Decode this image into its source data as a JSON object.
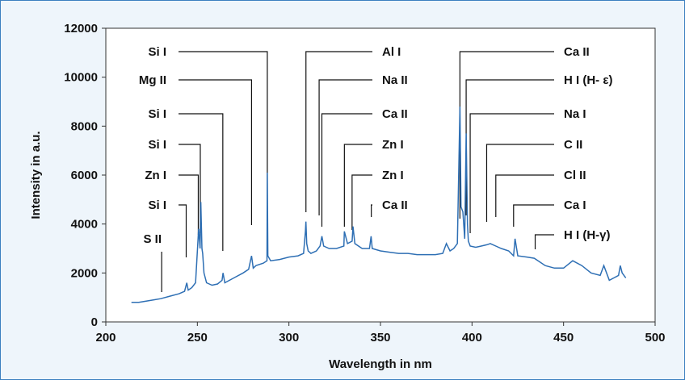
{
  "chart_data": {
    "type": "line",
    "title": "",
    "xlabel": "Wavelength in nm",
    "ylabel": "Intensity in a.u.",
    "xlim": [
      200,
      500
    ],
    "ylim": [
      0,
      12000
    ],
    "x_ticks": [
      200,
      250,
      300,
      350,
      400,
      450,
      500
    ],
    "y_ticks": [
      0,
      2000,
      4000,
      6000,
      8000,
      10000,
      12000
    ],
    "grid": false,
    "legend": "none",
    "line_color": "#2e6fb4",
    "series": [
      {
        "x": [
          214,
          218,
          222,
          226,
          230,
          235,
          240,
          243,
          244.2,
          245,
          247,
          249,
          250.7,
          251.5,
          251.9,
          252.5,
          252.9,
          253.6,
          255,
          258,
          261,
          263.5,
          264,
          265,
          270,
          275,
          278,
          279.6,
          280.5,
          282,
          286,
          288,
          288.2,
          288.5,
          290,
          295,
          300,
          305,
          308,
          309,
          309.3,
          309.7,
          310.5,
          312,
          315,
          317,
          318,
          319,
          322,
          326,
          330,
          330.3,
          332,
          334.5,
          335,
          336,
          340,
          344,
          344.9,
          345.5,
          350,
          355,
          360,
          365,
          370,
          375,
          380,
          384,
          386,
          388,
          390,
          392,
          393.4,
          394,
          395,
          396,
          396.8,
          397.5,
          398,
          399,
          402,
          405,
          408,
          410,
          413,
          416,
          420,
          422.7,
          423.5,
          425,
          430,
          434,
          440,
          445,
          450,
          455,
          460,
          465,
          470,
          472,
          475,
          480,
          481,
          482,
          484
        ],
        "y": [
          800,
          800,
          850,
          900,
          950,
          1050,
          1150,
          1250,
          1600,
          1300,
          1400,
          1600,
          3800,
          3000,
          4900,
          3000,
          2800,
          2000,
          1600,
          1500,
          1550,
          1700,
          2000,
          1600,
          1800,
          2000,
          2150,
          2700,
          2200,
          2300,
          2400,
          2500,
          6100,
          2700,
          2500,
          2550,
          2650,
          2700,
          2800,
          3700,
          4100,
          3200,
          2900,
          2800,
          2900,
          3100,
          3500,
          3100,
          3000,
          3000,
          3100,
          3700,
          3200,
          3300,
          3900,
          3200,
          3000,
          3000,
          3500,
          3000,
          2900,
          2850,
          2800,
          2800,
          2750,
          2750,
          2750,
          2800,
          3200,
          2900,
          3000,
          3200,
          8800,
          4700,
          4500,
          3400,
          7700,
          4000,
          3300,
          3100,
          3050,
          3100,
          3150,
          3200,
          3100,
          3000,
          2900,
          2700,
          3400,
          2700,
          2650,
          2600,
          2300,
          2200,
          2200,
          2500,
          2300,
          2000,
          1900,
          2300,
          1700,
          1900,
          2300,
          2000,
          1800
        ]
      }
    ],
    "annotations": [
      {
        "label": "Si I",
        "x": 288.2,
        "side": "left"
      },
      {
        "label": "Mg II",
        "x": 279.6,
        "side": "left"
      },
      {
        "label": "Si I",
        "x": 263.9,
        "side": "left"
      },
      {
        "label": "Si I",
        "x": 251.6,
        "side": "left"
      },
      {
        "label": "Zn  I",
        "x": 250.5,
        "side": "left"
      },
      {
        "label": "Si I",
        "x": 243.9,
        "side": "left"
      },
      {
        "label": "S II",
        "x": 230.5,
        "side": "left"
      },
      {
        "label": "Al I",
        "x": 309.3,
        "side": "right"
      },
      {
        "label": "Na II",
        "x": 316.5,
        "side": "right"
      },
      {
        "label": "Ca  II",
        "x": 318.0,
        "side": "right"
      },
      {
        "label": "Zn  I",
        "x": 330.3,
        "side": "right"
      },
      {
        "label": "Zn  I",
        "x": 334.5,
        "side": "right"
      },
      {
        "label": "Ca II",
        "x": 345.0,
        "side": "right"
      },
      {
        "label": "Ca II",
        "x": 393.4,
        "side": "right"
      },
      {
        "label": "H I (H- ε)",
        "x": 396.8,
        "side": "right"
      },
      {
        "label": "Na I",
        "x": 399.0,
        "side": "right"
      },
      {
        "label": "C II",
        "x": 408.0,
        "side": "right"
      },
      {
        "label": "Cl II",
        "x": 413.0,
        "side": "right"
      },
      {
        "label": "Ca I",
        "x": 422.7,
        "side": "right"
      },
      {
        "label": "H I (H-γ)",
        "x": 434.5,
        "side": "right"
      }
    ]
  }
}
